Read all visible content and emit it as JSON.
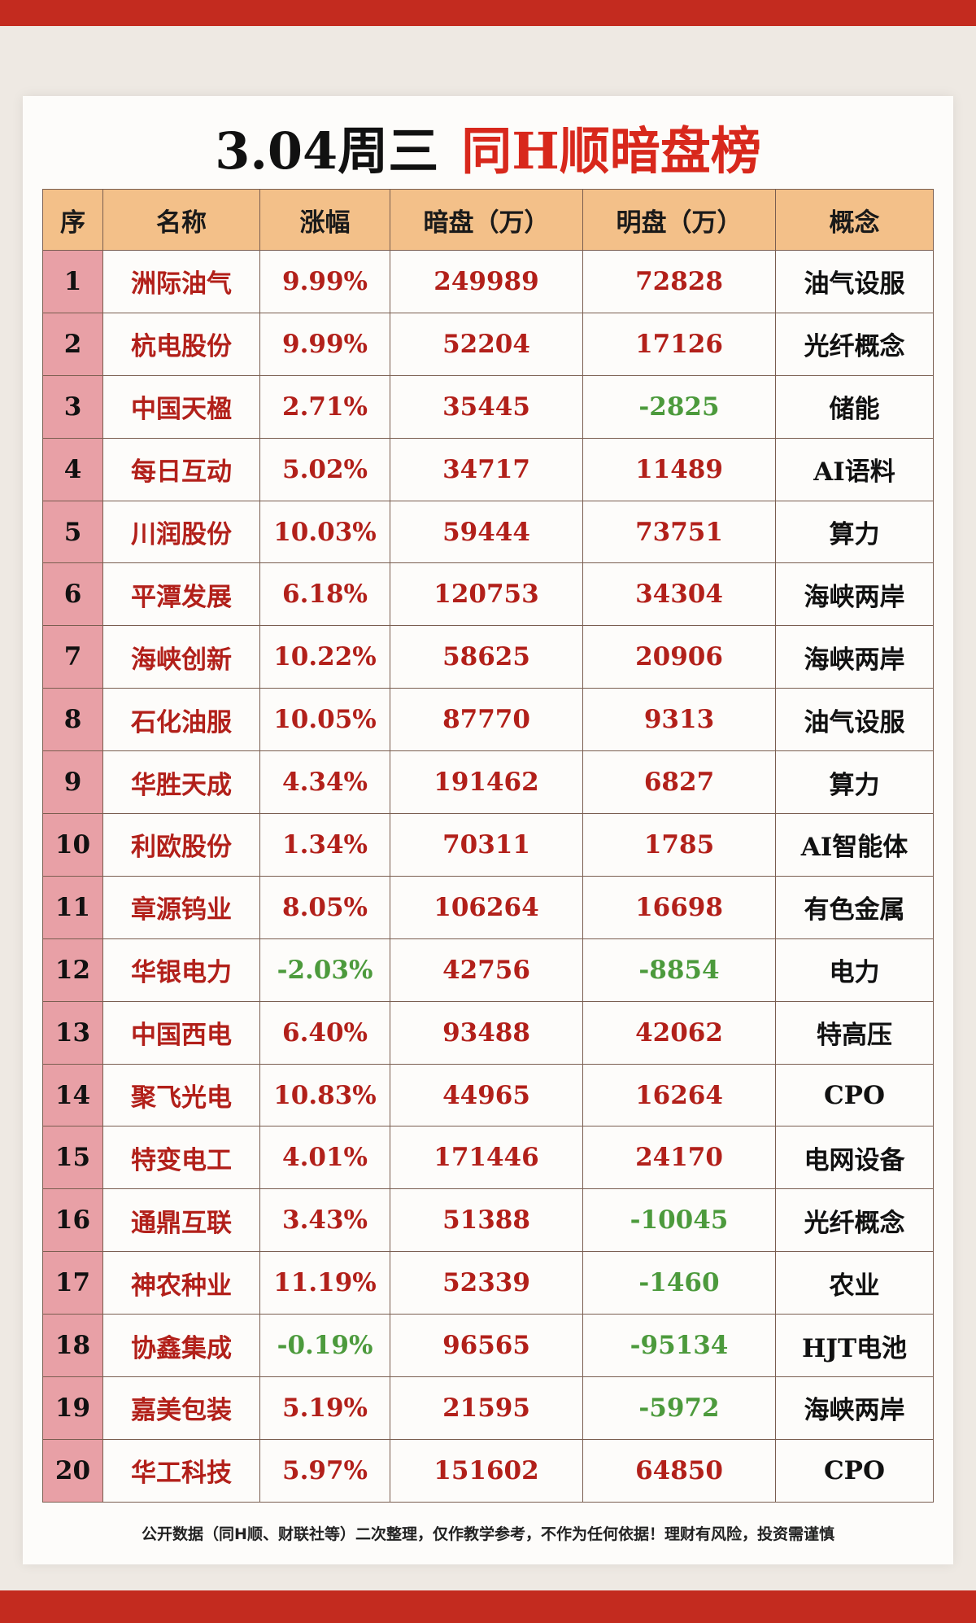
{
  "title": {
    "date": "3.04周三",
    "name": "同H顺暗盘榜"
  },
  "colors": {
    "red": "#d8281c",
    "neg_green": "#4c9a3c",
    "header_bg": "#f3c089",
    "seq_bg": "#e8a0a6"
  },
  "table": {
    "headers": [
      "序",
      "名称",
      "涨幅",
      "暗盘（万）",
      "明盘（万）",
      "概念"
    ],
    "rows": [
      {
        "seq": "1",
        "name": "洲际油气",
        "change": "9.99%",
        "dark": "249989",
        "open": "72828",
        "concept": "油气设服"
      },
      {
        "seq": "2",
        "name": "杭电股份",
        "change": "9.99%",
        "dark": "52204",
        "open": "17126",
        "concept": "光纤概念"
      },
      {
        "seq": "3",
        "name": "中国天楹",
        "change": "2.71%",
        "dark": "35445",
        "open": "-2825",
        "concept": "储能"
      },
      {
        "seq": "4",
        "name": "每日互动",
        "change": "5.02%",
        "dark": "34717",
        "open": "11489",
        "concept": "AI语料"
      },
      {
        "seq": "5",
        "name": "川润股份",
        "change": "10.03%",
        "dark": "59444",
        "open": "73751",
        "concept": "算力"
      },
      {
        "seq": "6",
        "name": "平潭发展",
        "change": "6.18%",
        "dark": "120753",
        "open": "34304",
        "concept": "海峡两岸"
      },
      {
        "seq": "7",
        "name": "海峡创新",
        "change": "10.22%",
        "dark": "58625",
        "open": "20906",
        "concept": "海峡两岸"
      },
      {
        "seq": "8",
        "name": "石化油服",
        "change": "10.05%",
        "dark": "87770",
        "open": "9313",
        "concept": "油气设服"
      },
      {
        "seq": "9",
        "name": "华胜天成",
        "change": "4.34%",
        "dark": "191462",
        "open": "6827",
        "concept": "算力"
      },
      {
        "seq": "10",
        "name": "利欧股份",
        "change": "1.34%",
        "dark": "70311",
        "open": "1785",
        "concept": "AI智能体"
      },
      {
        "seq": "11",
        "name": "章源钨业",
        "change": "8.05%",
        "dark": "106264",
        "open": "16698",
        "concept": "有色金属"
      },
      {
        "seq": "12",
        "name": "华银电力",
        "change": "-2.03%",
        "dark": "42756",
        "open": "-8854",
        "concept": "电力"
      },
      {
        "seq": "13",
        "name": "中国西电",
        "change": "6.40%",
        "dark": "93488",
        "open": "42062",
        "concept": "特高压"
      },
      {
        "seq": "14",
        "name": "聚飞光电",
        "change": "10.83%",
        "dark": "44965",
        "open": "16264",
        "concept": "CPO"
      },
      {
        "seq": "15",
        "name": "特变电工",
        "change": "4.01%",
        "dark": "171446",
        "open": "24170",
        "concept": "电网设备"
      },
      {
        "seq": "16",
        "name": "通鼎互联",
        "change": "3.43%",
        "dark": "51388",
        "open": "-10045",
        "concept": "光纤概念"
      },
      {
        "seq": "17",
        "name": "神农种业",
        "change": "11.19%",
        "dark": "52339",
        "open": "-1460",
        "concept": "农业"
      },
      {
        "seq": "18",
        "name": "协鑫集成",
        "change": "-0.19%",
        "dark": "96565",
        "open": "-95134",
        "concept": "HJT电池"
      },
      {
        "seq": "19",
        "name": "嘉美包装",
        "change": "5.19%",
        "dark": "21595",
        "open": "-5972",
        "concept": "海峡两岸"
      },
      {
        "seq": "20",
        "name": "华工科技",
        "change": "5.97%",
        "dark": "151602",
        "open": "64850",
        "concept": "CPO"
      }
    ]
  },
  "footnote": "公开数据（同H顺、财联社等）二次整理，仅作教学参考，不作为任何依据！理财有风险，投资需谨慎"
}
